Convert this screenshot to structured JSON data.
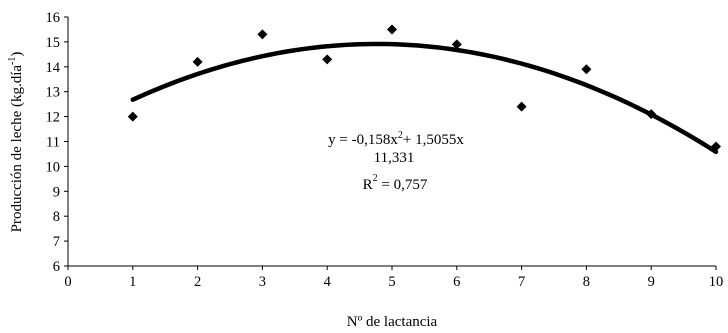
{
  "chart_data": {
    "type": "scatter",
    "xlabel": "Nº de lactancia",
    "ylabel": "Producción de leche (kg.día",
    "ylabel_sup": "-1",
    "ylabel_close": ")",
    "xlim": [
      0,
      10
    ],
    "ylim": [
      6,
      16
    ],
    "x_ticks": [
      "0",
      "1",
      "2",
      "3",
      "4",
      "5",
      "6",
      "7",
      "8",
      "9",
      "10"
    ],
    "y_ticks": [
      "6",
      "7",
      "8",
      "9",
      "10",
      "11",
      "12",
      "13",
      "14",
      "15",
      "16"
    ],
    "grid": false,
    "points": [
      {
        "x": 1,
        "y": 12.0
      },
      {
        "x": 2,
        "y": 14.2
      },
      {
        "x": 3,
        "y": 15.3
      },
      {
        "x": 4,
        "y": 14.3
      },
      {
        "x": 5,
        "y": 15.5
      },
      {
        "x": 6,
        "y": 14.9
      },
      {
        "x": 7,
        "y": 12.4
      },
      {
        "x": 8,
        "y": 13.9
      },
      {
        "x": 9,
        "y": 12.1
      },
      {
        "x": 10,
        "y": 10.8
      }
    ],
    "trendline": {
      "coefficients": {
        "a": -0.158,
        "b": 1.5055,
        "c": 11.331
      },
      "x_range": [
        1,
        10
      ]
    },
    "equation": {
      "line1_start": "y = -0,158x",
      "line1_sup": "2",
      "line1_end": "+ 1,5055x",
      "line2": "11,331",
      "line3_start": "R",
      "line3_sup": "2",
      "line3_end": " = 0,757"
    }
  }
}
